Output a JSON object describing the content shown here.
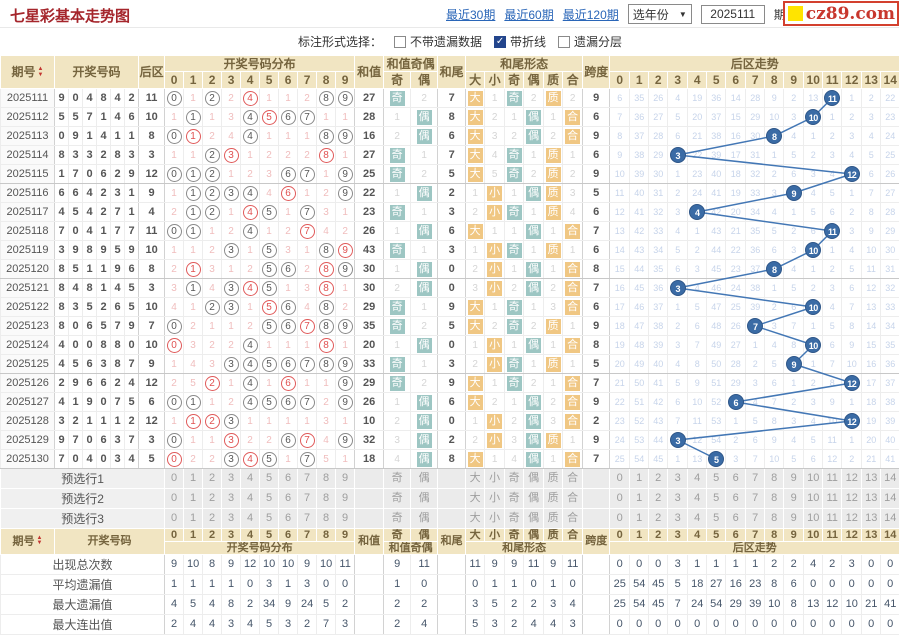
{
  "header": {
    "title": "七星彩基本走势图",
    "range_links": [
      "最近30期",
      "最近60期",
      "最近120期"
    ],
    "year_select": "选年份",
    "period_from": "2025111",
    "period_suffix": "期",
    "to_label": "至",
    "period_to": "2",
    "logo": "cz89.com"
  },
  "toolbar": {
    "label": "标注形式选择：",
    "options": [
      {
        "label": "不带遗漏数据",
        "checked": false
      },
      {
        "label": "带折线",
        "checked": true
      },
      {
        "label": "遗漏分层",
        "checked": false
      }
    ]
  },
  "columns": {
    "period": "期号",
    "numbers": "开奖号码",
    "back": "后区",
    "dist": "开奖号码分布",
    "sum": "和值",
    "sum_oe": "和值奇偶",
    "odd": "奇",
    "even": "偶",
    "tail": "和尾",
    "tail_form": "和尾形态",
    "forms": [
      "大",
      "小",
      "奇",
      "偶",
      "质",
      "合"
    ],
    "span": "跨度",
    "back_trend": "后区走势",
    "dist_digits": [
      "0",
      "1",
      "2",
      "3",
      "4",
      "5",
      "6",
      "7",
      "8",
      "9"
    ],
    "trend_digits": [
      "0",
      "1",
      "2",
      "3",
      "4",
      "5",
      "6",
      "7",
      "8",
      "9",
      "10",
      "11",
      "12",
      "13",
      "14"
    ]
  },
  "rows": [
    {
      "p": "2025111",
      "n": [
        9,
        0,
        4,
        8,
        4,
        2
      ],
      "b": 11,
      "d": [
        "h0",
        1,
        "h2",
        2,
        "r4",
        1,
        1,
        2,
        "h8",
        "h9"
      ],
      "s": 27,
      "oe": [
        "奇",
        2
      ],
      "t": 7,
      "f": [
        "大",
        1,
        "奇",
        2,
        "质",
        2
      ],
      "sp": 9,
      "tr": [
        6,
        35,
        26,
        4,
        19,
        36,
        14,
        28,
        9,
        2,
        13,
        "H",
        1,
        2,
        22
      ]
    },
    {
      "p": "2025112",
      "n": [
        5,
        5,
        7,
        1,
        4,
        6
      ],
      "b": 10,
      "d": [
        1,
        "h1",
        1,
        3,
        "h4",
        "r5",
        "h6",
        "h7",
        1,
        1
      ],
      "s": 28,
      "oe": [
        1,
        "偶"
      ],
      "t": 8,
      "f": [
        "大",
        2,
        1,
        "偶",
        1,
        "合"
      ],
      "sp": 6,
      "tr": [
        7,
        36,
        27,
        5,
        20,
        37,
        15,
        29,
        10,
        3,
        "H",
        1,
        2,
        3,
        23
      ]
    },
    {
      "p": "2025113",
      "n": [
        0,
        9,
        1,
        4,
        1,
        1
      ],
      "b": 8,
      "d": [
        "h0",
        "r1",
        2,
        4,
        "h4",
        1,
        1,
        1,
        "h8",
        "h9"
      ],
      "s": 16,
      "oe": [
        2,
        "偶"
      ],
      "t": 6,
      "f": [
        "大",
        3,
        2,
        "偶",
        2,
        "合"
      ],
      "sp": 9,
      "tr": [
        8,
        37,
        28,
        6,
        21,
        38,
        16,
        30,
        "H",
        4,
        1,
        2,
        3,
        4,
        24
      ]
    },
    {
      "p": "2025114",
      "n": [
        8,
        3,
        3,
        2,
        8,
        3
      ],
      "b": 3,
      "d": [
        1,
        1,
        "h2",
        "r3",
        1,
        2,
        2,
        2,
        "r8",
        1
      ],
      "s": 27,
      "oe": [
        "奇",
        1
      ],
      "t": 7,
      "f": [
        "大",
        4,
        "奇",
        1,
        "质",
        1
      ],
      "sp": 6,
      "tr": [
        9,
        38,
        29,
        "H",
        22,
        39,
        17,
        31,
        1,
        5,
        2,
        3,
        4,
        5,
        25
      ]
    },
    {
      "p": "2025115",
      "n": [
        1,
        7,
        0,
        6,
        2,
        9
      ],
      "b": 12,
      "d": [
        "h0",
        "h1",
        "h2",
        1,
        2,
        3,
        "h6",
        "h7",
        1,
        "h9"
      ],
      "s": 25,
      "oe": [
        "奇",
        2
      ],
      "t": 5,
      "f": [
        "大",
        5,
        "奇",
        2,
        "质",
        2
      ],
      "sp": 9,
      "tr": [
        10,
        39,
        30,
        1,
        23,
        40,
        18,
        32,
        2,
        6,
        3,
        4,
        "H",
        6,
        26
      ]
    },
    {
      "p": "2025116",
      "n": [
        6,
        6,
        4,
        2,
        3,
        1
      ],
      "b": 9,
      "d": [
        1,
        "h1",
        "h2",
        "h3",
        "h4",
        4,
        "r6",
        1,
        2,
        "h9"
      ],
      "s": 22,
      "oe": [
        1,
        "偶"
      ],
      "t": 2,
      "f": [
        1,
        "小",
        1,
        "偶",
        "质",
        3
      ],
      "sp": 5,
      "tr": [
        11,
        40,
        31,
        2,
        24,
        41,
        19,
        33,
        3,
        "H",
        4,
        5,
        1,
        7,
        27
      ]
    },
    {
      "p": "2025117",
      "n": [
        4,
        5,
        4,
        2,
        7,
        1
      ],
      "b": 4,
      "d": [
        2,
        "h1",
        "h2",
        1,
        "r4",
        "h5",
        1,
        "h7",
        3,
        1
      ],
      "s": 23,
      "oe": [
        "奇",
        1
      ],
      "t": 3,
      "f": [
        2,
        "小",
        "奇",
        1,
        "质",
        4
      ],
      "sp": 6,
      "tr": [
        12,
        41,
        32,
        3,
        "H",
        42,
        20,
        34,
        4,
        1,
        5,
        6,
        2,
        8,
        28
      ]
    },
    {
      "p": "2025118",
      "n": [
        7,
        0,
        4,
        1,
        7,
        7
      ],
      "b": 11,
      "d": [
        "h0",
        "h1",
        1,
        2,
        "h4",
        1,
        2,
        "r7",
        4,
        2
      ],
      "s": 26,
      "oe": [
        1,
        "偶"
      ],
      "t": 6,
      "f": [
        "大",
        1,
        1,
        "偶",
        1,
        "合"
      ],
      "sp": 7,
      "tr": [
        13,
        42,
        33,
        4,
        1,
        43,
        21,
        35,
        5,
        2,
        6,
        "H",
        3,
        9,
        29
      ]
    },
    {
      "p": "2025119",
      "n": [
        3,
        9,
        8,
        9,
        5,
        9
      ],
      "b": 10,
      "d": [
        1,
        1,
        2,
        "h3",
        1,
        "h5",
        3,
        1,
        "h8",
        "r9"
      ],
      "s": 43,
      "oe": [
        "奇",
        1
      ],
      "t": 3,
      "f": [
        1,
        "小",
        "奇",
        1,
        "质",
        1
      ],
      "sp": 6,
      "tr": [
        14,
        43,
        34,
        5,
        2,
        44,
        22,
        36,
        6,
        3,
        "H",
        1,
        4,
        10,
        30
      ]
    },
    {
      "p": "2025120",
      "n": [
        8,
        5,
        1,
        1,
        9,
        6
      ],
      "b": 8,
      "d": [
        2,
        "r1",
        3,
        1,
        2,
        "h5",
        "h6",
        2,
        "r8",
        "h9"
      ],
      "s": 30,
      "oe": [
        1,
        "偶"
      ],
      "t": 0,
      "f": [
        2,
        "小",
        1,
        "偶",
        1,
        "合"
      ],
      "sp": 8,
      "tr": [
        15,
        44,
        35,
        6,
        3,
        45,
        23,
        37,
        "H",
        4,
        1,
        2,
        5,
        11,
        31
      ]
    },
    {
      "p": "2025121",
      "n": [
        8,
        4,
        8,
        1,
        4,
        5
      ],
      "b": 3,
      "d": [
        3,
        "h1",
        4,
        "h3",
        "r4",
        "h5",
        1,
        3,
        "r8",
        1
      ],
      "s": 30,
      "oe": [
        2,
        "偶"
      ],
      "t": 0,
      "f": [
        3,
        "小",
        2,
        "偶",
        2,
        "合"
      ],
      "sp": 7,
      "tr": [
        16,
        45,
        36,
        "H",
        4,
        46,
        24,
        38,
        1,
        5,
        2,
        3,
        6,
        12,
        32
      ]
    },
    {
      "p": "2025122",
      "n": [
        8,
        3,
        5,
        2,
        6,
        5
      ],
      "b": 10,
      "d": [
        4,
        1,
        "h2",
        "h3",
        1,
        "r5",
        "h6",
        4,
        "h8",
        2
      ],
      "s": 29,
      "oe": [
        "奇",
        1
      ],
      "t": 9,
      "f": [
        "大",
        1,
        "奇",
        1,
        3,
        "合"
      ],
      "sp": 6,
      "tr": [
        17,
        46,
        37,
        1,
        5,
        47,
        25,
        39,
        2,
        6,
        "H",
        4,
        7,
        13,
        33
      ]
    },
    {
      "p": "2025123",
      "n": [
        8,
        0,
        6,
        5,
        7,
        9
      ],
      "b": 7,
      "d": [
        "h0",
        2,
        1,
        1,
        2,
        "h5",
        "h6",
        "r7",
        "h8",
        "h9"
      ],
      "s": 35,
      "oe": [
        "奇",
        2
      ],
      "t": 5,
      "f": [
        "大",
        2,
        "奇",
        2,
        "质",
        1
      ],
      "sp": 9,
      "tr": [
        18,
        47,
        38,
        2,
        6,
        48,
        26,
        "H",
        3,
        7,
        1,
        5,
        8,
        14,
        34
      ]
    },
    {
      "p": "2025124",
      "n": [
        4,
        0,
        0,
        8,
        8,
        0
      ],
      "b": 10,
      "d": [
        "r0",
        3,
        2,
        2,
        "h4",
        1,
        1,
        1,
        "r8",
        1
      ],
      "s": 20,
      "oe": [
        1,
        "偶"
      ],
      "t": 0,
      "f": [
        1,
        "小",
        1,
        "偶",
        1,
        "合"
      ],
      "sp": 8,
      "tr": [
        19,
        48,
        39,
        3,
        7,
        49,
        27,
        1,
        4,
        8,
        "H",
        6,
        9,
        15,
        35
      ]
    },
    {
      "p": "2025125",
      "n": [
        4,
        5,
        6,
        3,
        8,
        7
      ],
      "b": 9,
      "d": [
        1,
        4,
        3,
        "h3",
        "h4",
        "h5",
        "h6",
        "h7",
        "h8",
        "h9"
      ],
      "s": 33,
      "oe": [
        "奇",
        1
      ],
      "t": 3,
      "f": [
        2,
        "小",
        "奇",
        1,
        "质",
        1
      ],
      "sp": 5,
      "tr": [
        20,
        49,
        40,
        4,
        8,
        50,
        28,
        2,
        5,
        "H",
        1,
        7,
        10,
        16,
        36
      ]
    },
    {
      "p": "2025126",
      "n": [
        2,
        9,
        6,
        6,
        2,
        4
      ],
      "b": 12,
      "d": [
        2,
        5,
        "r2",
        1,
        "h4",
        1,
        "r6",
        1,
        1,
        "h9"
      ],
      "s": 29,
      "oe": [
        "奇",
        2
      ],
      "t": 9,
      "f": [
        "大",
        1,
        "奇",
        2,
        1,
        "合"
      ],
      "sp": 7,
      "tr": [
        21,
        50,
        41,
        5,
        9,
        51,
        29,
        3,
        6,
        1,
        2,
        8,
        "H",
        17,
        37
      ]
    },
    {
      "p": "2025127",
      "n": [
        4,
        1,
        9,
        0,
        7,
        5
      ],
      "b": 6,
      "d": [
        "h0",
        "h1",
        1,
        2,
        "h4",
        "h5",
        "h6",
        "h7",
        2,
        "h9"
      ],
      "s": 26,
      "oe": [
        1,
        "偶"
      ],
      "t": 6,
      "f": [
        "大",
        2,
        1,
        "偶",
        2,
        "合"
      ],
      "sp": 9,
      "tr": [
        22,
        51,
        42,
        6,
        10,
        52,
        "H",
        4,
        7,
        2,
        3,
        9,
        1,
        18,
        38
      ]
    },
    {
      "p": "2025128",
      "n": [
        3,
        2,
        1,
        1,
        1,
        2
      ],
      "b": 12,
      "d": [
        1,
        "r1",
        "r2",
        "h3",
        1,
        1,
        1,
        1,
        3,
        1
      ],
      "s": 10,
      "oe": [
        2,
        "偶"
      ],
      "t": 0,
      "f": [
        1,
        "小",
        2,
        "偶",
        3,
        "合"
      ],
      "sp": 2,
      "tr": [
        23,
        52,
        43,
        7,
        11,
        53,
        1,
        5,
        8,
        3,
        4,
        10,
        "H",
        19,
        39
      ]
    },
    {
      "p": "2025129",
      "n": [
        9,
        7,
        0,
        6,
        3,
        7
      ],
      "b": 3,
      "d": [
        "h0",
        1,
        1,
        "r3",
        2,
        2,
        "h6",
        "r7",
        4,
        "h9"
      ],
      "s": 32,
      "oe": [
        3,
        "偶"
      ],
      "t": 2,
      "f": [
        2,
        "小",
        3,
        "偶",
        "质",
        1
      ],
      "sp": 9,
      "tr": [
        24,
        53,
        44,
        "H",
        12,
        54,
        2,
        6,
        9,
        4,
        5,
        11,
        1,
        20,
        40
      ]
    },
    {
      "p": "2025130",
      "n": [
        7,
        0,
        4,
        0,
        3,
        4
      ],
      "b": 5,
      "d": [
        "r0",
        2,
        2,
        "h3",
        "r4",
        "h5",
        1,
        "h7",
        5,
        1
      ],
      "s": 18,
      "oe": [
        4,
        "偶"
      ],
      "t": 8,
      "f": [
        "大",
        1,
        4,
        "偶",
        1,
        "合"
      ],
      "sp": 7,
      "tr": [
        25,
        54,
        45,
        1,
        13,
        "H",
        3,
        7,
        10,
        5,
        6,
        12,
        2,
        21,
        41
      ]
    }
  ],
  "preselect_labels": [
    "预选行1",
    "预选行2",
    "预选行3"
  ],
  "stats": [
    {
      "label": "出现总次数",
      "dist": [
        9,
        10,
        8,
        9,
        12,
        10,
        10,
        9,
        10,
        11
      ],
      "oe": [
        9,
        11
      ],
      "forms": [
        11,
        9,
        9,
        11,
        9,
        11
      ],
      "trend": [
        0,
        0,
        0,
        3,
        1,
        1,
        1,
        1,
        2,
        2,
        4,
        2,
        3,
        0,
        0
      ]
    },
    {
      "label": "平均遗漏值",
      "dist": [
        1,
        1,
        1,
        1,
        0,
        3,
        1,
        3,
        0,
        0
      ],
      "oe": [
        1,
        0
      ],
      "forms": [
        0,
        1,
        1,
        0,
        1,
        0
      ],
      "trend": [
        25,
        54,
        45,
        5,
        18,
        27,
        16,
        23,
        8,
        6,
        0,
        0,
        0,
        0,
        0
      ]
    },
    {
      "label": "最大遗漏值",
      "dist": [
        4,
        5,
        4,
        8,
        2,
        34,
        9,
        24,
        5,
        2
      ],
      "oe": [
        2,
        2
      ],
      "forms": [
        3,
        5,
        2,
        2,
        3,
        4
      ],
      "trend": [
        25,
        54,
        45,
        7,
        24,
        54,
        29,
        39,
        10,
        8,
        13,
        12,
        10,
        21,
        41
      ]
    },
    {
      "label": "最大连出值",
      "dist": [
        2,
        4,
        4,
        3,
        4,
        5,
        3,
        2,
        7,
        3
      ],
      "oe": [
        2,
        4
      ],
      "forms": [
        5,
        3,
        2,
        4,
        4,
        3
      ],
      "trend": [
        0,
        0,
        0,
        0,
        0,
        0,
        0,
        0,
        0,
        0,
        0,
        0,
        0,
        0,
        0
      ]
    }
  ],
  "colors": {
    "title_red": "#a5262c",
    "link_blue": "#2a66b8",
    "header_bg": "#f1e5c2",
    "badge_tan": "#f0c783",
    "badge_teal": "#9dc6c3",
    "hit_circle_blue": "#3a6ba5",
    "polyline_blue": "#4377b5",
    "miss_pink": "#f0bdbd",
    "trend_miss_blue": "#c7d4ea",
    "logo_red": "#c8372d",
    "logo_yellow": "#ffe400"
  }
}
